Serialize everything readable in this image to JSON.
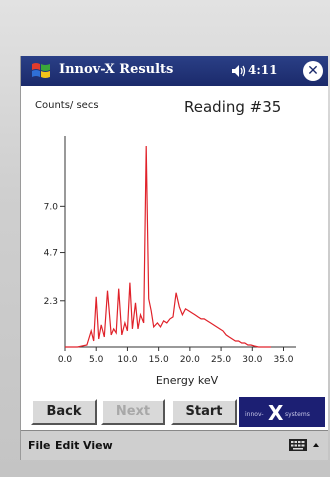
{
  "title_bar": {
    "app_title": "Innov-X Results",
    "time": "4:11",
    "close_symbol": "✕",
    "icons": [
      "windows-start-flag-icon",
      "speaker-icon",
      "close-icon"
    ]
  },
  "colors": {
    "title_bar": "#1b2a6b",
    "spectrum_line": "#e0222a",
    "logo_background": "#1c1f73"
  },
  "chart_data": {
    "type": "line",
    "title": "Reading #35",
    "xlabel": "Energy keV",
    "ylabel": "Counts/ secs",
    "xlim": [
      0,
      37
    ],
    "ylim": [
      0,
      10.5
    ],
    "x_ticks": [
      0,
      5,
      10,
      15,
      20,
      25,
      30,
      35
    ],
    "x_tick_labels": [
      "0.0",
      "5.0",
      "10.0",
      "15.0",
      "20.0",
      "25.0",
      "30.0",
      "35.0"
    ],
    "y_ticks": [
      2.3,
      4.7,
      7.0
    ],
    "y_tick_labels": [
      "2.3",
      "4.7",
      "7.0"
    ],
    "grid": false,
    "series": [
      {
        "x": [
          0,
          2,
          3.5,
          4.2,
          4.6,
          5.0,
          5.4,
          5.8,
          6.3,
          6.8,
          7.4,
          7.8,
          8.2,
          8.6,
          9.1,
          9.6,
          10.0,
          10.4,
          10.8,
          11.3,
          11.7,
          12.1,
          12.6,
          13.0,
          13.4,
          13.8,
          14.2,
          14.8,
          15.3,
          15.8,
          16.3,
          16.8,
          17.3,
          17.8,
          18.3,
          18.8,
          19.3,
          19.8,
          20.3,
          20.8,
          21.3,
          21.8,
          22.3,
          22.8,
          23.3,
          23.8,
          24.3,
          24.8,
          25.3,
          25.8,
          26.3,
          26.8,
          27.3,
          27.8,
          28.3,
          28.8,
          29.3,
          29.8,
          30.3,
          31,
          32,
          33
        ],
        "y": [
          0,
          0,
          0.1,
          0.8,
          0.3,
          2.5,
          0.4,
          1.1,
          0.5,
          2.8,
          0.6,
          0.9,
          0.7,
          2.9,
          0.6,
          1.2,
          0.8,
          3.2,
          0.9,
          2.2,
          0.9,
          1.6,
          1.2,
          10.0,
          2.4,
          1.8,
          1.0,
          1.2,
          1.0,
          1.3,
          1.2,
          1.4,
          1.5,
          2.7,
          2.0,
          1.6,
          1.9,
          1.8,
          1.7,
          1.6,
          1.5,
          1.4,
          1.4,
          1.3,
          1.2,
          1.1,
          1.0,
          0.9,
          0.8,
          0.6,
          0.5,
          0.4,
          0.3,
          0.3,
          0.2,
          0.2,
          0.1,
          0.1,
          0.05,
          0,
          0,
          0
        ]
      }
    ]
  },
  "buttons": {
    "back": "Back",
    "next": "Next",
    "start": "Start"
  },
  "logo": {
    "left_text": "innov-",
    "letter": "X",
    "right_text": "systems"
  },
  "menu": {
    "file": "File",
    "edit": "Edit",
    "view": "View",
    "icons": [
      "keyboard-icon",
      "sip-arrow-icon"
    ]
  }
}
